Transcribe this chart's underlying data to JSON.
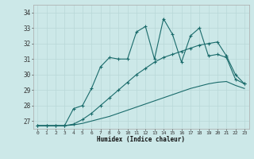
{
  "xlabel": "Humidex (Indice chaleur)",
  "bg_color": "#cce8e8",
  "grid_color": "#b8d8d8",
  "line_color": "#1a6b6b",
  "xlim": [
    -0.5,
    23.5
  ],
  "ylim": [
    26.5,
    34.5
  ],
  "xticks": [
    0,
    1,
    2,
    3,
    4,
    5,
    6,
    7,
    8,
    9,
    10,
    11,
    12,
    13,
    14,
    15,
    16,
    17,
    18,
    19,
    20,
    21,
    22,
    23
  ],
  "yticks": [
    27,
    28,
    29,
    30,
    31,
    32,
    33,
    34
  ],
  "line1_x": [
    0,
    1,
    2,
    3,
    4,
    5,
    6,
    7,
    8,
    9,
    10,
    11,
    12,
    13,
    14,
    15,
    16,
    17,
    18,
    19,
    20,
    21,
    22,
    23
  ],
  "line1_y": [
    26.7,
    26.7,
    26.7,
    26.7,
    26.75,
    26.85,
    27.0,
    27.15,
    27.3,
    27.5,
    27.7,
    27.9,
    28.1,
    28.3,
    28.5,
    28.7,
    28.9,
    29.1,
    29.25,
    29.4,
    29.5,
    29.55,
    29.3,
    29.1
  ],
  "line2_x": [
    0,
    1,
    2,
    3,
    4,
    5,
    6,
    7,
    8,
    9,
    10,
    11,
    12,
    13,
    14,
    15,
    16,
    17,
    18,
    19,
    20,
    21,
    22,
    23
  ],
  "line2_y": [
    26.7,
    26.7,
    26.7,
    26.7,
    26.8,
    27.1,
    27.5,
    28.0,
    28.5,
    29.0,
    29.5,
    30.0,
    30.4,
    30.8,
    31.1,
    31.3,
    31.5,
    31.7,
    31.9,
    32.0,
    32.1,
    31.2,
    30.0,
    29.4
  ],
  "line3_x": [
    0,
    1,
    2,
    3,
    4,
    5,
    6,
    7,
    8,
    9,
    10,
    11,
    12,
    13,
    14,
    15,
    16,
    17,
    18,
    19,
    20,
    21,
    22,
    23
  ],
  "line3_y": [
    26.7,
    26.7,
    26.7,
    26.7,
    27.8,
    28.0,
    29.1,
    30.5,
    31.1,
    31.0,
    31.0,
    32.75,
    33.1,
    31.0,
    33.6,
    32.6,
    30.8,
    32.5,
    33.0,
    31.2,
    31.3,
    31.1,
    29.7,
    29.4
  ]
}
